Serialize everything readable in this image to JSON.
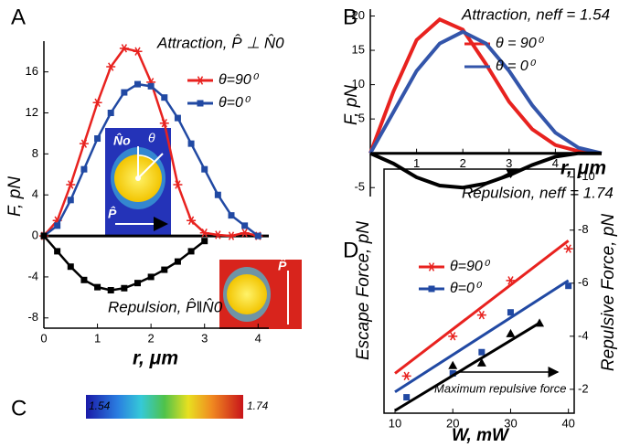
{
  "chart_data": [
    {
      "type": "line",
      "panel": "A",
      "xlabel": "r, μm",
      "ylabel": "F, pN",
      "xlim": [
        0,
        4.2
      ],
      "ylim": [
        -9,
        19
      ],
      "xticks": [
        0,
        1,
        2,
        3,
        4
      ],
      "yticks": [
        -8,
        -4,
        0,
        4,
        8,
        12,
        16
      ],
      "annotations": [
        "Attraction, P̂ ⊥ N̂0",
        "Repulsion, P̂‖N̂0"
      ],
      "x": [
        0,
        0.25,
        0.5,
        0.75,
        1,
        1.25,
        1.5,
        1.75,
        2,
        2.25,
        2.5,
        2.75,
        3,
        3.25,
        3.5,
        3.75,
        4
      ],
      "series": [
        {
          "name": "θ=90⁰",
          "color": "#e8221f",
          "marker": "star",
          "values": [
            0,
            1.5,
            5,
            9,
            13,
            16.5,
            18.3,
            18,
            15,
            11,
            5,
            1.5,
            0.3,
            0.1,
            0,
            0.3,
            0
          ]
        },
        {
          "name": "θ=0⁰",
          "color": "#2149a3",
          "marker": "square",
          "values": [
            0,
            1,
            3.5,
            6.5,
            9.5,
            12,
            14,
            14.8,
            14.6,
            13.5,
            11.5,
            9,
            6.5,
            4,
            2,
            1,
            0
          ]
        },
        {
          "color": "#000000",
          "marker": "square",
          "values": [
            0,
            -1.5,
            -3,
            -4.3,
            -5,
            -5.3,
            -5.1,
            -4.6,
            -4,
            -3.3,
            -2.5,
            -1.5,
            -0.5,
            null,
            null,
            null,
            null
          ]
        }
      ]
    },
    {
      "type": "line",
      "panel": "B",
      "xlabel": "r, μm",
      "ylabel": "F, pN",
      "xlim": [
        0,
        5
      ],
      "ylim": [
        -6.3,
        21
      ],
      "xticks": [
        1,
        2,
        3,
        4
      ],
      "yticks": [
        -5,
        5,
        10,
        15,
        20
      ],
      "annotations": [
        "Attraction, neff = 1.54",
        "Repulsion, neff = 1.74"
      ],
      "x": [
        0,
        0.5,
        1,
        1.5,
        2,
        2.5,
        3,
        3.5,
        4,
        4.5,
        5
      ],
      "series": [
        {
          "name": "θ = 90⁰",
          "color": "#e8221f",
          "values": [
            0,
            9,
            16.5,
            19.5,
            18,
            13,
            7.5,
            3.5,
            1.2,
            0.3,
            0
          ]
        },
        {
          "name": "θ = 0⁰",
          "color": "#3355aa",
          "values": [
            0,
            6,
            12,
            16,
            17.7,
            16,
            12,
            7,
            3,
            0.8,
            0
          ]
        },
        {
          "color": "#000000",
          "values": [
            0,
            -1.5,
            -3.5,
            -4.7,
            -5,
            -4.4,
            -3.2,
            -1.7,
            -0.5,
            0,
            0
          ]
        }
      ]
    },
    {
      "type": "colorbar",
      "panel": "C",
      "range": [
        1.54,
        1.74
      ]
    },
    {
      "type": "scatter",
      "panel": "D",
      "xlabel": "W, mW",
      "ylabel": "Escape Force, pN",
      "y2label": "Repulsive Force, pN",
      "xlim": [
        8.1,
        41
      ],
      "ylim": [
        1.1,
        10.3
      ],
      "y2lim": [
        -1.1,
        -10.3
      ],
      "xticks": [
        10,
        20,
        30,
        40
      ],
      "y2ticks": [
        -2,
        -4,
        -6,
        -8,
        -10
      ],
      "annotations": [
        "Maximum repulsive force"
      ],
      "fit_x": [
        10,
        40
      ],
      "series": [
        {
          "name": "θ=90⁰",
          "color": "#e8221f",
          "marker": "star",
          "x": [
            12,
            20,
            25,
            30,
            40
          ],
          "values": [
            2.5,
            4.0,
            4.8,
            6.1,
            7.3
          ],
          "fit": [
            2.6,
            7.6
          ]
        },
        {
          "name": "θ=0⁰",
          "color": "#2149a3",
          "marker": "square",
          "x": [
            12,
            20,
            25,
            30,
            40
          ],
          "values": [
            1.7,
            2.6,
            3.4,
            4.9,
            5.9
          ],
          "fit": [
            1.9,
            6.1
          ]
        },
        {
          "color": "#000000",
          "marker": "triangle",
          "axis": "y2",
          "x": [
            20,
            25,
            30,
            35
          ],
          "values": [
            -2.9,
            -3.0,
            -4.1,
            -4.5
          ],
          "fit_x": [
            10,
            35
          ],
          "fit": [
            -1.2,
            -4.5
          ]
        }
      ]
    }
  ]
}
